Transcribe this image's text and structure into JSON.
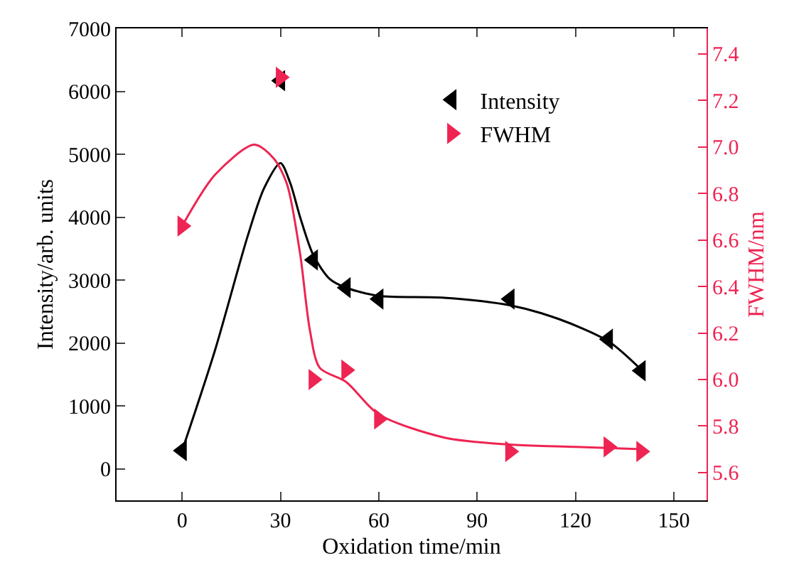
{
  "chart_data": {
    "type": "scatter",
    "xlabel": "Oxidation time/min",
    "ylabel": "Intensity/arb. units",
    "y2label": "FWHM/nm",
    "xlim": [
      -20,
      160
    ],
    "xticks": [
      0,
      30,
      60,
      90,
      120,
      150
    ],
    "ylim": [
      -500,
      7000
    ],
    "yticks": [
      0,
      1000,
      2000,
      3000,
      4000,
      5000,
      6000,
      7000
    ],
    "y2lim": [
      5.48,
      7.51
    ],
    "y2ticks": [
      {
        "value": 5.6,
        "label": "5.6"
      },
      {
        "value": 5.8,
        "label": "5.8"
      },
      {
        "value": 6.0,
        "label": "6.0"
      },
      {
        "value": 6.2,
        "label": "6.2"
      },
      {
        "value": 6.4,
        "label": "6.4"
      },
      {
        "value": 6.6,
        "label": "6.6"
      },
      {
        "value": 6.8,
        "label": "6.8"
      },
      {
        "value": 7.0,
        "label": "7.0"
      },
      {
        "value": 7.2,
        "label": "7.2"
      },
      {
        "value": 7.4,
        "label": "7.4"
      }
    ],
    "grid": false,
    "legend": "top right",
    "series": [
      {
        "name": "Intensity",
        "marker": "triangle-left",
        "color": "#000000",
        "x": [
          0,
          30,
          40,
          50,
          60,
          100,
          130,
          140
        ],
        "values": [
          290,
          6170,
          3320,
          2880,
          2700,
          2700,
          2060,
          1560
        ]
      },
      {
        "name": "FWHM",
        "marker": "triangle-right",
        "axis": "y2",
        "color": "#ee2452",
        "x": [
          0,
          30,
          40,
          50,
          60,
          100,
          130,
          140
        ],
        "values": [
          6.66,
          7.3,
          6.0,
          6.04,
          5.83,
          5.69,
          5.71,
          5.69
        ]
      },
      {
        "type": "line",
        "color": "#000000",
        "x": [
          0,
          10,
          20,
          25,
          30,
          33,
          36,
          40,
          45,
          50,
          60,
          80,
          100,
          115,
          130,
          140
        ],
        "values": [
          290,
          1880,
          3700,
          4460,
          4860,
          4540,
          4000,
          3400,
          3020,
          2880,
          2750,
          2720,
          2600,
          2380,
          2030,
          1580
        ]
      },
      {
        "type": "line",
        "axis": "y2",
        "color": "#ee2452",
        "x": [
          0,
          10,
          22,
          28,
          32,
          36,
          39,
          42,
          50,
          60,
          80,
          100,
          120,
          140
        ],
        "values": [
          6.66,
          6.88,
          7.01,
          6.95,
          6.84,
          6.54,
          6.21,
          6.05,
          5.99,
          5.85,
          5.75,
          5.72,
          5.71,
          5.7
        ]
      }
    ]
  }
}
